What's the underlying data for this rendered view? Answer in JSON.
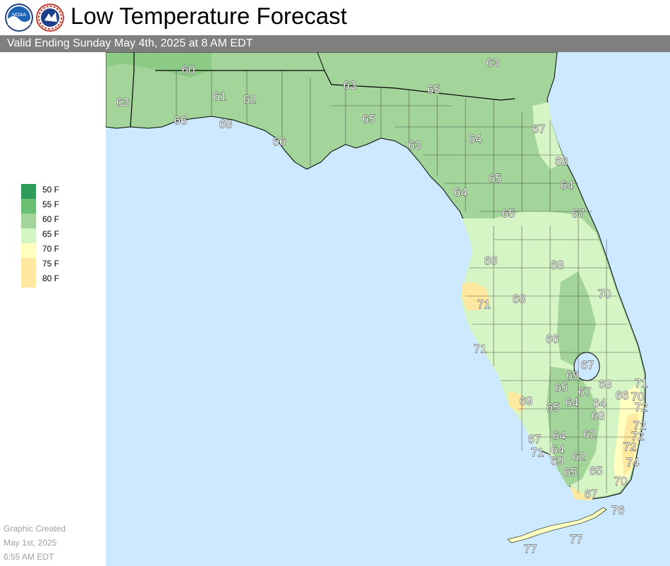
{
  "header": {
    "title": "Low Temperature Forecast",
    "subtitle": "Valid Ending Sunday May 4th, 2025 at 8 AM EDT",
    "logo_left": "noaa-logo",
    "logo_right": "nws-logo"
  },
  "legend": [
    {
      "label": "50 F",
      "color": "#2e9b5a"
    },
    {
      "label": "55 F",
      "color": "#6bbf72"
    },
    {
      "label": "60 F",
      "color": "#a3d59b"
    },
    {
      "label": "65 F",
      "color": "#d6f5c4"
    },
    {
      "label": "70 F",
      "color": "#ffffc0"
    },
    {
      "label": "75 F",
      "color": "#ffe9a0"
    },
    {
      "label": "80 F",
      "color": "#ffe9a0"
    }
  ],
  "footer": {
    "line1": "Graphic Created",
    "line2": "May 1st, 2025",
    "line3": "6:55 AM EDT"
  },
  "colors": {
    "water": "#cce9ff",
    "band_60": "#a3d59b",
    "band_55": "#8ccb86",
    "band_65": "#d6f5c4",
    "band_70": "#ffffc0",
    "band_75": "#ffe9a0"
  },
  "map_values": [
    "60",
    "63",
    "63",
    "65",
    "61",
    "62",
    "63",
    "66",
    "68",
    "66",
    "65",
    "63",
    "64",
    "67",
    "68",
    "65",
    "64",
    "64",
    "65",
    "67",
    "66",
    "68",
    "68",
    "70",
    "71",
    "71",
    "66",
    "67",
    "65",
    "68",
    "71",
    "65",
    "67",
    "66",
    "70",
    "69",
    "65",
    "64",
    "64",
    "72",
    "68",
    "72",
    "67",
    "64",
    "62",
    "72",
    "71",
    "64",
    "62",
    "72",
    "69",
    "65",
    "65",
    "74",
    "67",
    "70",
    "76",
    "77",
    "77"
  ]
}
